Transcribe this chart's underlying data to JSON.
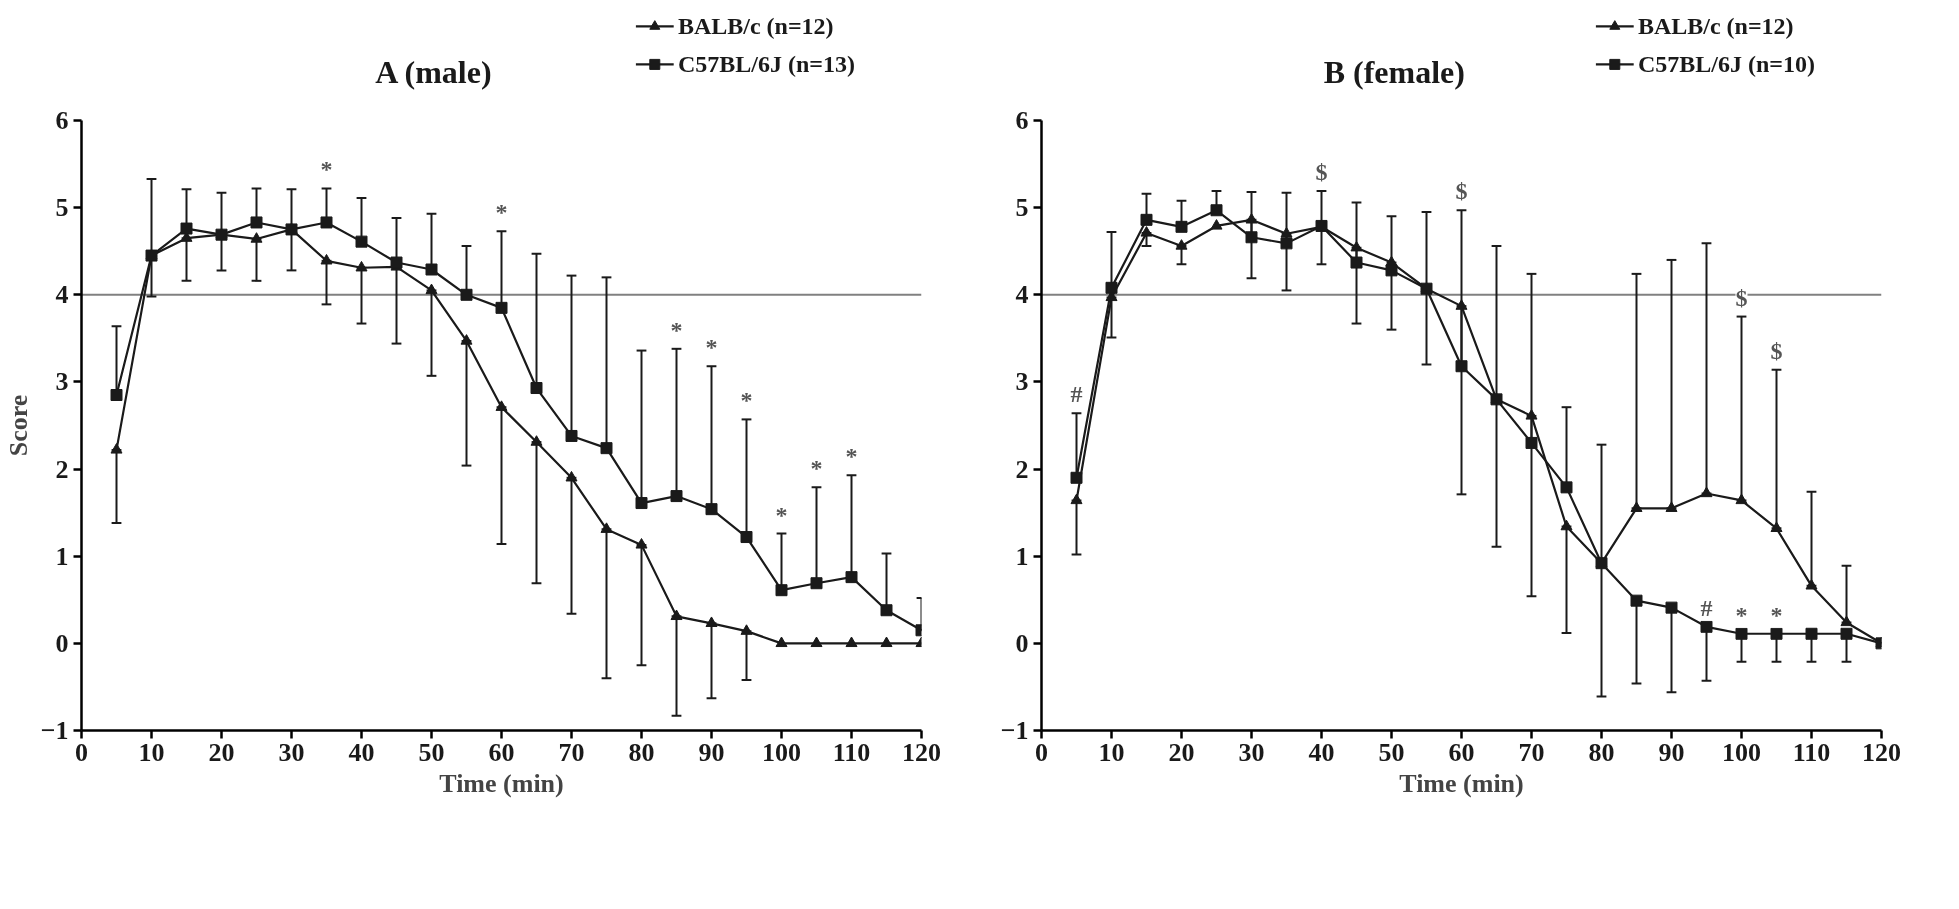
{
  "chart_data": [
    {
      "type": "line",
      "title": "A (male)",
      "xlabel": "Time (min)",
      "ylabel": "Score",
      "x": [
        5,
        10,
        15,
        20,
        25,
        30,
        35,
        40,
        45,
        50,
        55,
        60,
        65,
        70,
        75,
        80,
        85,
        90,
        95,
        100,
        105,
        110,
        115,
        120
      ],
      "xlim": [
        0,
        120
      ],
      "xticks": [
        0,
        10,
        20,
        30,
        40,
        50,
        60,
        70,
        80,
        90,
        100,
        110,
        120
      ],
      "ylim": [
        -1,
        6
      ],
      "yticks": [
        -1,
        0,
        1,
        2,
        3,
        4,
        5,
        6
      ],
      "legend": "top right",
      "grid": false,
      "line_style": "solid",
      "ref_lines": [
        {
          "axis": "y",
          "value": 4,
          "color": "#808080"
        }
      ],
      "series": [
        {
          "name": "BALB/c (n=12)",
          "color": "#1a1a1a",
          "marker": "triangle",
          "values": [
            2.22,
            4.45,
            4.65,
            4.69,
            4.64,
            4.75,
            4.39,
            4.31,
            4.32,
            4.05,
            3.47,
            2.71,
            2.31,
            1.9,
            1.31,
            1.13,
            0.31,
            0.23,
            0.14,
            0,
            0,
            0,
            0,
            0
          ],
          "errors": [
            [
              1.38,
              2.22
            ],
            [
              3.98,
              4.45
            ],
            [
              4.16,
              4.65
            ],
            [
              4.28,
              4.69
            ],
            [
              4.16,
              4.64
            ],
            [
              4.28,
              4.75
            ],
            [
              3.89,
              4.39
            ],
            [
              3.67,
              4.31
            ],
            [
              3.44,
              4.32
            ],
            [
              3.07,
              4.05
            ],
            [
              2.04,
              3.47
            ],
            [
              1.14,
              2.71
            ],
            [
              0.69,
              2.31
            ],
            [
              0.34,
              1.9
            ],
            [
              -0.4,
              1.31
            ],
            [
              -0.25,
              1.13
            ],
            [
              -0.83,
              0.31
            ],
            [
              -0.63,
              0.23
            ],
            [
              -0.42,
              0.14
            ],
            null,
            null,
            null,
            null,
            null
          ]
        },
        {
          "name": "C57BL/6J (n=13)",
          "color": "#1a1a1a",
          "marker": "square",
          "values": [
            2.85,
            4.45,
            4.76,
            4.69,
            4.83,
            4.75,
            4.83,
            4.61,
            4.37,
            4.29,
            4.0,
            3.85,
            2.93,
            2.38,
            2.24,
            1.61,
            1.69,
            1.54,
            1.22,
            0.61,
            0.69,
            0.76,
            0.38,
            0.15
          ],
          "errors": [
            [
              2.85,
              3.64
            ],
            [
              4.45,
              5.33
            ],
            [
              4.76,
              5.21
            ],
            [
              4.69,
              5.17
            ],
            [
              4.83,
              5.22
            ],
            [
              4.75,
              5.21
            ],
            [
              4.83,
              5.22
            ],
            [
              4.61,
              5.11
            ],
            [
              4.37,
              4.88
            ],
            [
              4.29,
              4.93
            ],
            [
              4.0,
              4.56
            ],
            [
              3.85,
              4.73
            ],
            [
              2.93,
              4.47
            ],
            [
              2.38,
              4.22
            ],
            [
              2.24,
              4.2
            ],
            [
              1.61,
              3.36
            ],
            [
              1.69,
              3.38
            ],
            [
              1.54,
              3.18
            ],
            [
              1.22,
              2.57
            ],
            [
              0.61,
              1.26
            ],
            [
              0.69,
              1.79
            ],
            [
              0.76,
              1.93
            ],
            [
              0.38,
              1.03
            ],
            [
              0.15,
              0.52
            ]
          ]
        }
      ],
      "annotations": [
        {
          "text": "*",
          "x": 35,
          "y": 5.22
        },
        {
          "text": "*",
          "x": 60,
          "y": 4.73
        },
        {
          "text": "*",
          "x": 85,
          "y": 3.38
        },
        {
          "text": "*",
          "x": 90,
          "y": 3.18
        },
        {
          "text": "*",
          "x": 95,
          "y": 2.57
        },
        {
          "text": "*",
          "x": 100,
          "y": 1.26
        },
        {
          "text": "*",
          "x": 105,
          "y": 1.79
        },
        {
          "text": "*",
          "x": 110,
          "y": 1.93
        }
      ]
    },
    {
      "type": "line",
      "title": "B (female)",
      "xlabel": "Time (min)",
      "x": [
        5,
        10,
        15,
        20,
        25,
        30,
        35,
        40,
        45,
        50,
        55,
        60,
        65,
        70,
        75,
        80,
        85,
        90,
        95,
        100,
        105,
        110,
        115,
        120
      ],
      "xlim": [
        0,
        120
      ],
      "xticks": [
        0,
        10,
        20,
        30,
        40,
        50,
        60,
        70,
        80,
        90,
        100,
        110,
        120
      ],
      "ylim": [
        -1,
        6
      ],
      "yticks": [
        -1,
        0,
        1,
        2,
        3,
        4,
        5,
        6
      ],
      "legend": "top right",
      "grid": false,
      "line_style": "solid",
      "ref_lines": [
        {
          "axis": "y",
          "value": 4,
          "color": "#808080"
        }
      ],
      "series": [
        {
          "name": "BALB/c (n=12)",
          "color": "#1a1a1a",
          "marker": "triangle",
          "values": [
            1.64,
            3.97,
            4.71,
            4.56,
            4.79,
            4.86,
            4.7,
            4.78,
            4.54,
            4.37,
            4.07,
            3.87,
            2.8,
            2.61,
            1.34,
            0.92,
            1.55,
            1.55,
            1.72,
            1.64,
            1.32,
            0.66,
            0.24,
            0
          ],
          "errors": [
            [
              1.02,
              1.64
            ],
            [
              3.51,
              3.97
            ],
            [
              4.56,
              4.71
            ],
            [
              4.35,
              4.56
            ],
            null,
            [
              4.19,
              4.86
            ],
            [
              4.05,
              4.7
            ],
            [
              4.35,
              4.78
            ],
            [
              3.67,
              4.54
            ],
            [
              3.6,
              4.37
            ],
            [
              3.2,
              4.07
            ],
            [
              1.71,
              3.87
            ],
            [
              1.11,
              2.8
            ],
            [
              0.54,
              2.61
            ],
            [
              0.12,
              1.34
            ],
            [
              -0.61,
              0.92
            ],
            [
              1.55,
              4.24
            ],
            [
              1.55,
              4.4
            ],
            [
              1.72,
              4.59
            ],
            [
              1.64,
              3.75
            ],
            [
              1.32,
              3.14
            ],
            [
              0.66,
              1.74
            ],
            [
              0.24,
              0.89
            ],
            null
          ]
        },
        {
          "name": "C57BL/6J (n=10)",
          "color": "#1a1a1a",
          "marker": "square",
          "values": [
            1.9,
            4.08,
            4.86,
            4.78,
            4.97,
            4.66,
            4.59,
            4.79,
            4.37,
            4.28,
            4.07,
            3.18,
            2.8,
            2.3,
            1.79,
            0.92,
            0.49,
            0.41,
            0.19,
            0.11,
            0.11,
            0.11,
            0.11,
            0
          ],
          "errors": [
            [
              1.9,
              2.64
            ],
            [
              4.08,
              4.72
            ],
            [
              4.86,
              5.16
            ],
            [
              4.78,
              5.08
            ],
            [
              4.97,
              5.19
            ],
            [
              4.66,
              5.18
            ],
            [
              4.59,
              5.17
            ],
            [
              4.79,
              5.19
            ],
            [
              4.37,
              5.06
            ],
            [
              4.28,
              4.9
            ],
            [
              4.07,
              4.95
            ],
            [
              3.18,
              4.97
            ],
            [
              2.8,
              4.56
            ],
            [
              2.3,
              4.24
            ],
            [
              1.79,
              2.71
            ],
            [
              0.92,
              2.28
            ],
            [
              -0.46,
              0.49
            ],
            [
              -0.56,
              0.41
            ],
            [
              -0.43,
              0.19
            ],
            [
              -0.21,
              0.11
            ],
            [
              -0.21,
              0.11
            ],
            [
              -0.21,
              0.11
            ],
            [
              -0.21,
              0.11
            ],
            null
          ]
        }
      ],
      "annotations": [
        {
          "text": "#",
          "x": 5,
          "y": 2.64
        },
        {
          "text": "$",
          "x": 40,
          "y": 5.19
        },
        {
          "text": "$",
          "x": 60,
          "y": 4.97
        },
        {
          "text": "$",
          "x": 100,
          "y": 3.75
        },
        {
          "text": "$",
          "x": 105,
          "y": 3.14
        },
        {
          "text": "#",
          "x": 95,
          "y": 0.19
        },
        {
          "text": "*",
          "x": 100,
          "y": 0.11
        },
        {
          "text": "*",
          "x": 105,
          "y": 0.11
        }
      ]
    }
  ]
}
